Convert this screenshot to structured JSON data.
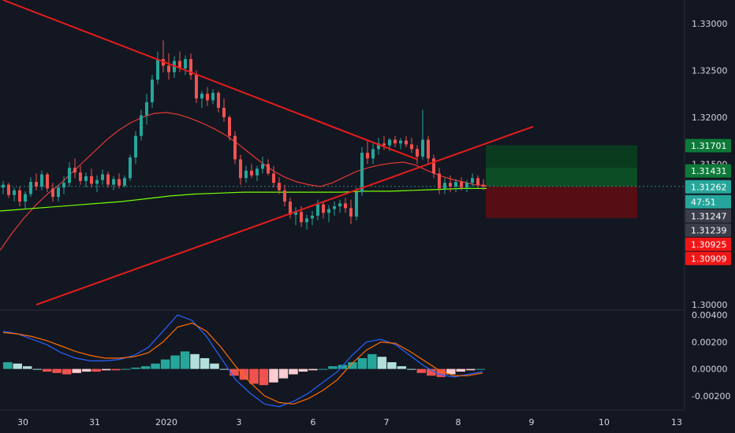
{
  "chart_data": [
    {
      "type": "candlestick",
      "x_ticks": [
        "30",
        "31",
        "2020",
        "3",
        "6",
        "7",
        "8",
        "9",
        "10",
        "13"
      ],
      "y_ticks": [
        "1.33000",
        "1.32500",
        "1.32000",
        "1.31500",
        "1.30000"
      ],
      "ylim": [
        1.2995,
        1.3325
      ],
      "grid": false,
      "price_labels": [
        {
          "value": "1.31701",
          "color": "#0e7a39"
        },
        {
          "value": "1.31431",
          "color": "#0e7a39"
        },
        {
          "value": "1.31262",
          "color": "#26a69a"
        },
        {
          "value": "47:51",
          "color": "#26a69a"
        },
        {
          "value": "1.31247",
          "color": "#3a3e4a"
        },
        {
          "value": "1.31239",
          "color": "#3a3e4a"
        },
        {
          "value": "1.30925",
          "color": "#f11616"
        },
        {
          "value": "1.30909",
          "color": "#f11616"
        }
      ],
      "ohlc": [
        [
          1.3125,
          1.3132,
          1.3118,
          1.3128
        ],
        [
          1.3128,
          1.313,
          1.3114,
          1.3117
        ],
        [
          1.3117,
          1.3125,
          1.311,
          1.3122
        ],
        [
          1.3122,
          1.3126,
          1.3105,
          1.311
        ],
        [
          1.311,
          1.3121,
          1.3102,
          1.3118
        ],
        [
          1.3118,
          1.3136,
          1.3115,
          1.3131
        ],
        [
          1.3131,
          1.314,
          1.3122,
          1.3126
        ],
        [
          1.3126,
          1.3143,
          1.3122,
          1.3139
        ],
        [
          1.3139,
          1.3141,
          1.312,
          1.3124
        ],
        [
          1.3124,
          1.313,
          1.311,
          1.3115
        ],
        [
          1.3115,
          1.3128,
          1.311,
          1.3125
        ],
        [
          1.3125,
          1.3137,
          1.3118,
          1.313
        ],
        [
          1.313,
          1.3152,
          1.3126,
          1.3146
        ],
        [
          1.3146,
          1.3156,
          1.3135,
          1.3141
        ],
        [
          1.3141,
          1.3148,
          1.3128,
          1.3132
        ],
        [
          1.3132,
          1.3141,
          1.3125,
          1.3137
        ],
        [
          1.3137,
          1.3145,
          1.3125,
          1.3129
        ],
        [
          1.3129,
          1.3138,
          1.312,
          1.3133
        ],
        [
          1.3133,
          1.3144,
          1.3128,
          1.3139
        ],
        [
          1.3139,
          1.3142,
          1.3125,
          1.3128
        ],
        [
          1.3128,
          1.3137,
          1.3122,
          1.3134
        ],
        [
          1.3134,
          1.314,
          1.3124,
          1.3127
        ],
        [
          1.3127,
          1.3138,
          1.3125,
          1.3135
        ],
        [
          1.3135,
          1.316,
          1.3132,
          1.3157
        ],
        [
          1.3157,
          1.3185,
          1.315,
          1.318
        ],
        [
          1.318,
          1.3208,
          1.3175,
          1.3202
        ],
        [
          1.3202,
          1.3225,
          1.3192,
          1.3216
        ],
        [
          1.3216,
          1.3245,
          1.321,
          1.324
        ],
        [
          1.324,
          1.327,
          1.3235,
          1.3262
        ],
        [
          1.3262,
          1.3282,
          1.3248,
          1.3255
        ],
        [
          1.3255,
          1.3268,
          1.324,
          1.3248
        ],
        [
          1.3248,
          1.3265,
          1.3242,
          1.326
        ],
        [
          1.326,
          1.327,
          1.3248,
          1.3252
        ],
        [
          1.3252,
          1.3266,
          1.3245,
          1.3262
        ],
        [
          1.3262,
          1.3268,
          1.324,
          1.3245
        ],
        [
          1.3245,
          1.325,
          1.3215,
          1.322
        ],
        [
          1.322,
          1.3228,
          1.321,
          1.3225
        ],
        [
          1.3225,
          1.3232,
          1.3212,
          1.3218
        ],
        [
          1.3218,
          1.323,
          1.3214,
          1.3226
        ],
        [
          1.3226,
          1.3228,
          1.3205,
          1.321
        ],
        [
          1.321,
          1.322,
          1.3195,
          1.32
        ],
        [
          1.32,
          1.3202,
          1.3175,
          1.318
        ],
        [
          1.318,
          1.3185,
          1.315,
          1.3155
        ],
        [
          1.3155,
          1.316,
          1.3128,
          1.3135
        ],
        [
          1.3135,
          1.3148,
          1.313,
          1.3143
        ],
        [
          1.3143,
          1.315,
          1.3135,
          1.3138
        ],
        [
          1.3138,
          1.3148,
          1.3132,
          1.3145
        ],
        [
          1.3145,
          1.3158,
          1.314,
          1.315
        ],
        [
          1.315,
          1.3155,
          1.3138,
          1.314
        ],
        [
          1.314,
          1.3148,
          1.3125,
          1.313
        ],
        [
          1.313,
          1.3136,
          1.3118,
          1.3122
        ],
        [
          1.3122,
          1.3128,
          1.3105,
          1.311
        ],
        [
          1.311,
          1.3114,
          1.3092,
          1.3096
        ],
        [
          1.3096,
          1.3104,
          1.3085,
          1.3099
        ],
        [
          1.3099,
          1.3105,
          1.3083,
          1.3088
        ],
        [
          1.3088,
          1.3096,
          1.308,
          1.3092
        ],
        [
          1.3092,
          1.31,
          1.3085,
          1.3095
        ],
        [
          1.3095,
          1.3112,
          1.309,
          1.3107
        ],
        [
          1.3107,
          1.311,
          1.3092,
          1.3098
        ],
        [
          1.3098,
          1.3106,
          1.3088,
          1.3102
        ],
        [
          1.3102,
          1.311,
          1.3095,
          1.3105
        ],
        [
          1.3105,
          1.3112,
          1.3098,
          1.3108
        ],
        [
          1.3108,
          1.3114,
          1.3098,
          1.3103
        ],
        [
          1.3103,
          1.3112,
          1.3086,
          1.3094
        ],
        [
          1.3094,
          1.3125,
          1.309,
          1.312
        ],
        [
          1.312,
          1.3168,
          1.3116,
          1.3162
        ],
        [
          1.3162,
          1.3175,
          1.315,
          1.3156
        ],
        [
          1.3156,
          1.3172,
          1.315,
          1.3166
        ],
        [
          1.3166,
          1.3178,
          1.316,
          1.3172
        ],
        [
          1.3172,
          1.318,
          1.3165,
          1.317
        ],
        [
          1.317,
          1.3178,
          1.3164,
          1.3176
        ],
        [
          1.3176,
          1.318,
          1.3168,
          1.3172
        ],
        [
          1.3172,
          1.3178,
          1.3166,
          1.3175
        ],
        [
          1.3175,
          1.318,
          1.3168,
          1.3171
        ],
        [
          1.3171,
          1.3178,
          1.3162,
          1.3166
        ],
        [
          1.3166,
          1.317,
          1.315,
          1.3158
        ],
        [
          1.3158,
          1.3208,
          1.3155,
          1.3176
        ],
        [
          1.3176,
          1.318,
          1.315,
          1.3156
        ],
        [
          1.3156,
          1.316,
          1.3135,
          1.314
        ],
        [
          1.314,
          1.3146,
          1.3118,
          1.3124
        ],
        [
          1.3124,
          1.3135,
          1.3118,
          1.313
        ],
        [
          1.313,
          1.3138,
          1.312,
          1.3126
        ],
        [
          1.3126,
          1.3134,
          1.312,
          1.3131
        ],
        [
          1.3131,
          1.3136,
          1.3122,
          1.3125
        ],
        [
          1.3125,
          1.3133,
          1.312,
          1.313
        ],
        [
          1.313,
          1.314,
          1.3126,
          1.3135
        ],
        [
          1.3135,
          1.3138,
          1.3124,
          1.3128
        ],
        [
          1.3128,
          1.3134,
          1.3122,
          1.3126
        ]
      ],
      "series": [
        {
          "values": [
            1.3058,
            1.3076,
            1.3092,
            1.3106,
            1.3118,
            1.3128,
            1.314,
            1.3152,
            1.3164,
            1.3176,
            1.3186,
            1.3194,
            1.32,
            1.3204,
            1.3205,
            1.3203,
            1.3199,
            1.3194,
            1.3188,
            1.3181,
            1.3172,
            1.3162,
            1.3152,
            1.3143,
            1.3136,
            1.3131,
            1.3128,
            1.3126,
            1.313,
            1.3136,
            1.3142,
            1.3146,
            1.3149,
            1.3151,
            1.3152,
            1.3149,
            1.3143,
            1.3138,
            1.3134,
            1.3131,
            1.3128,
            1.3127
          ],
          "color": "#e53935"
        },
        {
          "values": [
            1.31,
            1.3102,
            1.3104,
            1.3106,
            1.3108,
            1.311,
            1.3113,
            1.3116,
            1.3118,
            1.3119,
            1.312,
            1.312,
            1.312,
            1.312,
            1.312,
            1.3121,
            1.3121,
            1.3122,
            1.3123,
            1.3124,
            1.3124
          ],
          "color": "#76ff03"
        }
      ],
      "trendlines": [
        {
          "from": [
            0,
            1.3325
          ],
          "to": [
            75,
            1.3155
          ],
          "color": "#e51c1c"
        },
        {
          "from": [
            6,
            1.3
          ],
          "to": [
            96,
            1.319
          ],
          "color": "#e51c1c"
        }
      ],
      "positions": [
        {
          "entry": 1.31262,
          "target": 1.31701,
          "stop": 1.30925
        }
      ]
    },
    {
      "type": "bar",
      "title": "",
      "y_ticks": [
        "0.00400",
        "0.00200",
        "0.00000",
        "-0.00200"
      ],
      "ylim": [
        -0.003,
        0.0043
      ],
      "values": [
        0.0005,
        0.0004,
        0.0002,
        0.0,
        -0.0002,
        -0.0003,
        -0.0004,
        -0.0003,
        -0.0002,
        -0.0002,
        -0.0001,
        -0.0001,
        0.0,
        0.0001,
        0.0002,
        0.0004,
        0.0007,
        0.001,
        0.0013,
        0.0011,
        0.0008,
        0.0004,
        0.0,
        -0.0005,
        -0.0008,
        -0.0011,
        -0.0012,
        -0.001,
        -0.0007,
        -0.0004,
        -0.0002,
        -0.0001,
        0.0,
        0.0002,
        0.0003,
        0.0005,
        0.0008,
        0.0011,
        0.0009,
        0.0005,
        0.0002,
        0.0,
        -0.0003,
        -0.0005,
        -0.0006,
        -0.0004,
        -0.0002,
        -0.0001,
        0.0
      ],
      "series": [
        {
          "values": [
            0.0028,
            0.0026,
            0.0022,
            0.0018,
            0.0012,
            0.0008,
            0.0006,
            0.0006,
            0.0007,
            0.001,
            0.0016,
            0.0028,
            0.004,
            0.0036,
            0.0024,
            0.0008,
            -0.0008,
            -0.0018,
            -0.0026,
            -0.0028,
            -0.0024,
            -0.0018,
            -0.001,
            -0.0002,
            0.001,
            0.002,
            0.0022,
            0.0018,
            0.001,
            0.0002,
            -0.0004,
            -0.0006,
            -0.0004,
            -0.0002
          ],
          "color": "#2962ff"
        },
        {
          "values": [
            0.0027,
            0.0026,
            0.0024,
            0.0021,
            0.0017,
            0.0013,
            0.001,
            0.0008,
            0.0008,
            0.0009,
            0.0012,
            0.002,
            0.0031,
            0.0034,
            0.0028,
            0.0016,
            0.0002,
            -0.001,
            -0.002,
            -0.0025,
            -0.0026,
            -0.0022,
            -0.0016,
            -0.0008,
            0.0004,
            0.0014,
            0.002,
            0.0019,
            0.0013,
            0.0006,
            -0.0001,
            -0.0005,
            -0.0005,
            -0.0003
          ],
          "color": "#ff6d00"
        }
      ]
    }
  ]
}
